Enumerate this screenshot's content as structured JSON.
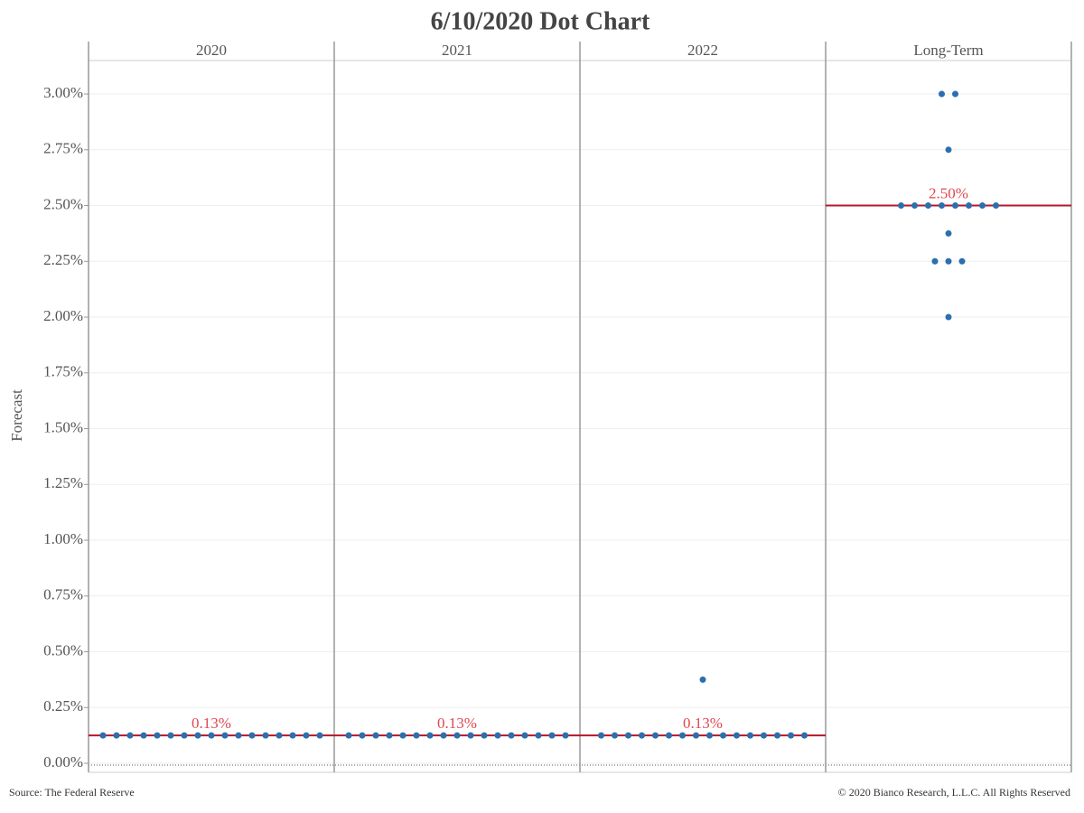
{
  "chart_data": {
    "type": "dot",
    "title": "6/10/2020 Dot Chart",
    "y_label": "Forecast",
    "source": "Source: The Federal Reserve",
    "copyright": "© 2020 Bianco Research, L.L.C. All Rights Reserved",
    "color": "#2b6fae",
    "median_color": "#b2182b",
    "median_label_color": "#e0474f",
    "ylim": [
      0,
      3.15
    ],
    "yticks": [
      {
        "value": 0,
        "label": "0.00%"
      },
      {
        "value": 0.25,
        "label": "0.25%"
      },
      {
        "value": 0.5,
        "label": "0.50%"
      },
      {
        "value": 0.75,
        "label": "0.75%"
      },
      {
        "value": 1,
        "label": "1.00%"
      },
      {
        "value": 1.25,
        "label": "1.25%"
      },
      {
        "value": 1.5,
        "label": "1.50%"
      },
      {
        "value": 1.75,
        "label": "1.75%"
      },
      {
        "value": 2,
        "label": "2.00%"
      },
      {
        "value": 2.25,
        "label": "2.25%"
      },
      {
        "value": 2.5,
        "label": "2.50%"
      },
      {
        "value": 2.75,
        "label": "2.75%"
      },
      {
        "value": 3,
        "label": "3.00%"
      }
    ],
    "grid": true,
    "panels": [
      {
        "name": "2020",
        "values": [
          0.125,
          0.125,
          0.125,
          0.125,
          0.125,
          0.125,
          0.125,
          0.125,
          0.125,
          0.125,
          0.125,
          0.125,
          0.125,
          0.125,
          0.125,
          0.125,
          0.125
        ],
        "median": 0.125,
        "median_label": "0.13%"
      },
      {
        "name": "2021",
        "values": [
          0.125,
          0.125,
          0.125,
          0.125,
          0.125,
          0.125,
          0.125,
          0.125,
          0.125,
          0.125,
          0.125,
          0.125,
          0.125,
          0.125,
          0.125,
          0.125,
          0.125
        ],
        "median": 0.125,
        "median_label": "0.13%"
      },
      {
        "name": "2022",
        "values": [
          0.375,
          0.125,
          0.125,
          0.125,
          0.125,
          0.125,
          0.125,
          0.125,
          0.125,
          0.125,
          0.125,
          0.125,
          0.125,
          0.125,
          0.125,
          0.125,
          0.125
        ],
        "median": 0.125,
        "median_label": "0.13%"
      },
      {
        "name": "Long-Term",
        "values": [
          3,
          3,
          2.75,
          2.5,
          2.5,
          2.5,
          2.5,
          2.5,
          2.5,
          2.5,
          2.5,
          2.375,
          2.25,
          2.25,
          2.25,
          2
        ],
        "median": 2.5,
        "median_label": "2.50%"
      }
    ]
  }
}
